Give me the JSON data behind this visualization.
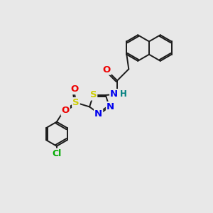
{
  "bg_color": "#e8e8e8",
  "bond_color": "#1a1a1a",
  "atom_colors": {
    "S": "#cccc00",
    "N": "#0000ee",
    "O": "#ee0000",
    "Cl": "#00aa00",
    "H": "#008080",
    "C": "#1a1a1a"
  },
  "lw": 1.4,
  "fs": 8.5
}
